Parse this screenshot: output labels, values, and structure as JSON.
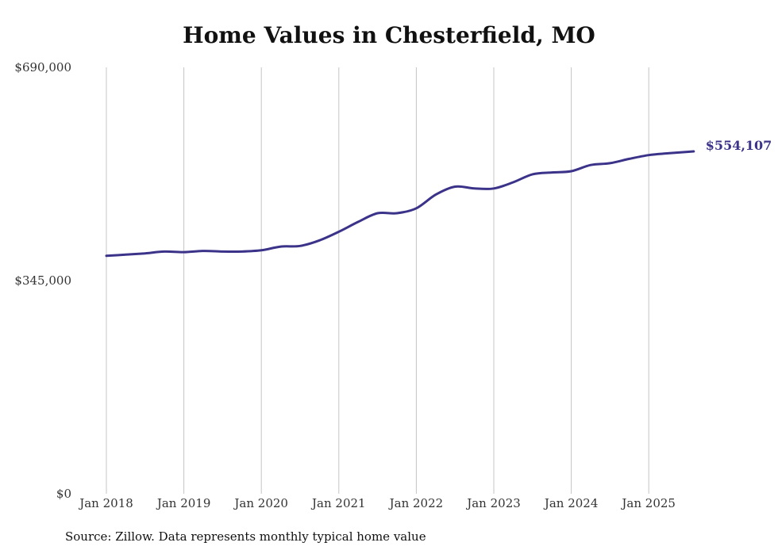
{
  "colors": {
    "line": "#3b3389",
    "grid": "#c4c4c4"
  },
  "chart_data": {
    "type": "line",
    "title": "Home Values in Chesterfield, MO",
    "xlabel": "",
    "ylabel": "",
    "ylim": [
      0,
      690000
    ],
    "y_ticks": [
      {
        "value": 0,
        "label": "$0"
      },
      {
        "value": 345000,
        "label": "$345,000"
      },
      {
        "value": 690000,
        "label": "$690,000"
      }
    ],
    "x_ticks": [
      {
        "value": 2018,
        "label": "Jan 2018"
      },
      {
        "value": 2019,
        "label": "Jan 2019"
      },
      {
        "value": 2020,
        "label": "Jan 2020"
      },
      {
        "value": 2021,
        "label": "Jan 2021"
      },
      {
        "value": 2022,
        "label": "Jan 2022"
      },
      {
        "value": 2023,
        "label": "Jan 2023"
      },
      {
        "value": 2024,
        "label": "Jan 2024"
      },
      {
        "value": 2025,
        "label": "Jan 2025"
      }
    ],
    "xlim": [
      2018,
      2025.58
    ],
    "grid": true,
    "series": [
      {
        "points": [
          [
            2018.0,
            385000
          ],
          [
            2018.25,
            387000
          ],
          [
            2018.5,
            389000
          ],
          [
            2018.75,
            392000
          ],
          [
            2019.0,
            391000
          ],
          [
            2019.25,
            393000
          ],
          [
            2019.5,
            392000
          ],
          [
            2019.75,
            392000
          ],
          [
            2020.0,
            394000
          ],
          [
            2020.25,
            400000
          ],
          [
            2020.5,
            401000
          ],
          [
            2020.75,
            410000
          ],
          [
            2021.0,
            424000
          ],
          [
            2021.25,
            440000
          ],
          [
            2021.5,
            454000
          ],
          [
            2021.75,
            454000
          ],
          [
            2022.0,
            462000
          ],
          [
            2022.25,
            484000
          ],
          [
            2022.5,
            497000
          ],
          [
            2022.75,
            494000
          ],
          [
            2023.0,
            494000
          ],
          [
            2023.25,
            504000
          ],
          [
            2023.5,
            517000
          ],
          [
            2023.75,
            520000
          ],
          [
            2024.0,
            522000
          ],
          [
            2024.25,
            532000
          ],
          [
            2024.5,
            535000
          ],
          [
            2024.75,
            542000
          ],
          [
            2025.0,
            548000
          ],
          [
            2025.25,
            551000
          ],
          [
            2025.58,
            554107
          ]
        ],
        "end_label": "$554,107"
      }
    ]
  },
  "footer": {
    "source": "Source: Zillow. Data represents monthly typical home value"
  }
}
